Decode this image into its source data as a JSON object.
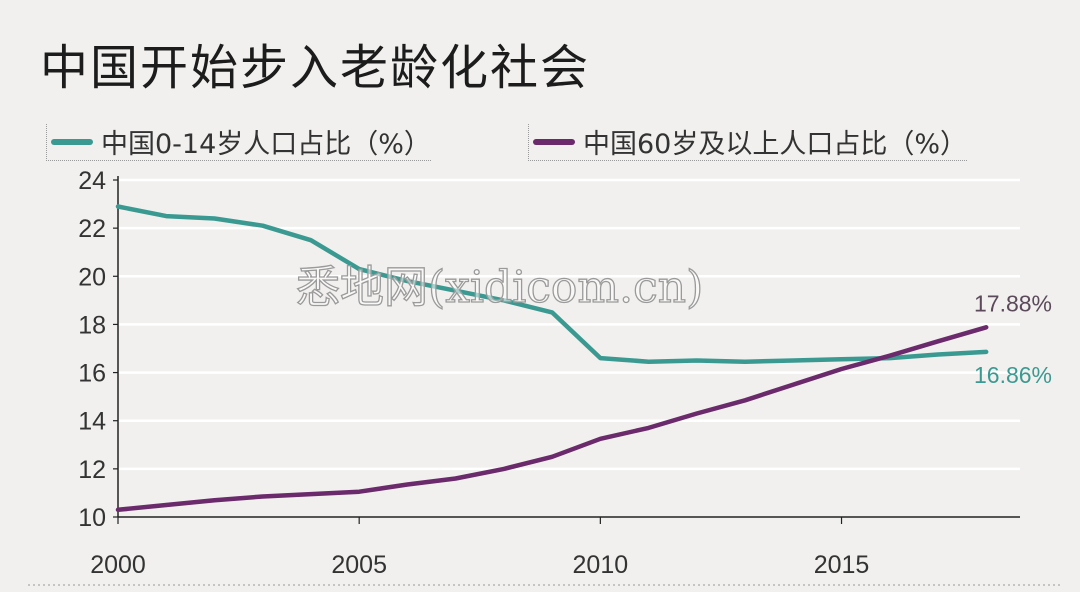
{
  "title": "中国开始步入老龄化社会",
  "watermark_text": "悉地网(xidicom.cn)",
  "chart_data": {
    "type": "line",
    "title": "中国开始步入老龄化社会",
    "xlabel": "",
    "ylabel": "",
    "xlim": [
      2000,
      2018.7
    ],
    "ylim": [
      10,
      24
    ],
    "xticks": [
      2000,
      2005,
      2010,
      2015
    ],
    "yticks": [
      10,
      12,
      14,
      16,
      18,
      20,
      22,
      24
    ],
    "grid": true,
    "legend_position": "top",
    "series": [
      {
        "name": "中国0-14岁人口占比（%）",
        "color": "#3a9a92",
        "x": [
          2000,
          2001,
          2002,
          2003,
          2004,
          2005,
          2006,
          2007,
          2008,
          2009,
          2010,
          2011,
          2012,
          2013,
          2014,
          2015,
          2016,
          2017,
          2018
        ],
        "values": [
          22.9,
          22.5,
          22.4,
          22.1,
          21.5,
          20.3,
          19.8,
          19.4,
          19.0,
          18.5,
          16.6,
          16.45,
          16.5,
          16.45,
          16.5,
          16.55,
          16.6,
          16.75,
          16.86
        ],
        "end_label": "16.86%"
      },
      {
        "name": "中国60岁及以上人口占比（%）",
        "color": "#6b2a6b",
        "x": [
          2000,
          2001,
          2002,
          2003,
          2004,
          2005,
          2006,
          2007,
          2008,
          2009,
          2010,
          2011,
          2012,
          2013,
          2014,
          2015,
          2016,
          2017,
          2018
        ],
        "values": [
          10.3,
          10.5,
          10.7,
          10.85,
          10.95,
          11.05,
          11.35,
          11.6,
          12.0,
          12.5,
          13.25,
          13.7,
          14.3,
          14.85,
          15.5,
          16.15,
          16.7,
          17.3,
          17.88
        ],
        "end_label": "17.88%"
      }
    ]
  }
}
